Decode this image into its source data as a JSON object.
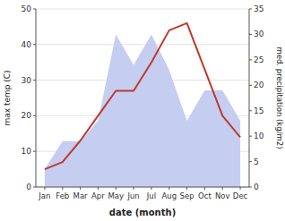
{
  "chart_data": {
    "type": "line",
    "categories": [
      "Jan",
      "Feb",
      "Mar",
      "Apr",
      "May",
      "Jun",
      "Jul",
      "Aug",
      "Sep",
      "Oct",
      "Nov",
      "Dec"
    ],
    "series": [
      {
        "type": "area",
        "axis": "y2",
        "color": "#c5cef0",
        "values": [
          3.5,
          9,
          9,
          13,
          30,
          24,
          30,
          23,
          13,
          19,
          19,
          13
        ]
      },
      {
        "type": "line",
        "color": "#c0392b",
        "values": [
          5,
          7,
          13,
          20,
          27,
          27,
          35,
          44,
          46,
          33,
          20,
          14
        ]
      }
    ],
    "xlabel": "date (month)",
    "ylabel": "max temp (C)",
    "y2label": "med. precipitation (kg/m2)",
    "ylim": [
      0,
      50
    ],
    "yticks": [
      0,
      10,
      20,
      30,
      40,
      50
    ],
    "y2lim": [
      0,
      35
    ],
    "y2ticks": [
      0,
      5,
      10,
      15,
      20,
      25,
      30,
      35
    ],
    "grid": true
  }
}
